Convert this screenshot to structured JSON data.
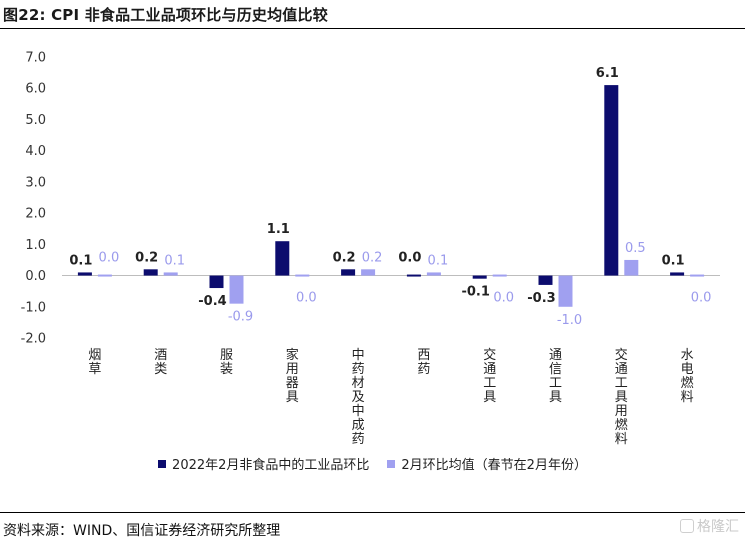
{
  "figure": {
    "title": "图22: CPI 非食品工业品项环比与历史均值比较",
    "source": "资料来源：WIND、国信证券经济研究所整理",
    "watermark": "格隆汇"
  },
  "colors": {
    "series1": "#0c0c6e",
    "series2": "#a0a0f0"
  },
  "chart_data": {
    "type": "bar",
    "categories": [
      "烟草",
      "酒类",
      "服装",
      "家用器具",
      "中药材及中成药",
      "西药",
      "交通工具",
      "通信工具",
      "交通工具用燃料",
      "水电燃料"
    ],
    "series": [
      {
        "name": "2022年2月非食品中的工业品环比",
        "values": [
          0.1,
          0.2,
          -0.4,
          1.1,
          0.2,
          0.0,
          -0.1,
          -0.3,
          6.1,
          0.1
        ]
      },
      {
        "name": "2月环比均值（春节在2月年份）",
        "values": [
          0.0,
          0.1,
          -0.9,
          0.0,
          0.2,
          0.1,
          0.0,
          -1.0,
          0.5,
          0.0
        ]
      }
    ],
    "ylim": [
      -2.0,
      7.0
    ],
    "yticks": [
      7.0,
      6.0,
      5.0,
      4.0,
      3.0,
      2.0,
      1.0,
      0.0,
      -1.0,
      -2.0
    ],
    "ytick_labels": [
      "7.0",
      "6.0",
      "5.0",
      "4.0",
      "3.0",
      "2.0",
      "1.0",
      "0.0",
      "-1.0",
      "-2.0"
    ],
    "labels_s1": [
      "0.1",
      "0.2",
      "-0.4",
      "1.1",
      "0.2",
      "0.0",
      "-0.1",
      "-0.3",
      "6.1",
      "0.1"
    ],
    "labels_s2": [
      "0.0",
      "0.1",
      "-0.9",
      "0.0",
      "0.2",
      "0.1",
      "0.0",
      "-1.0",
      "0.5",
      "0.0"
    ],
    "grid": false,
    "legend_position": "bottom"
  }
}
